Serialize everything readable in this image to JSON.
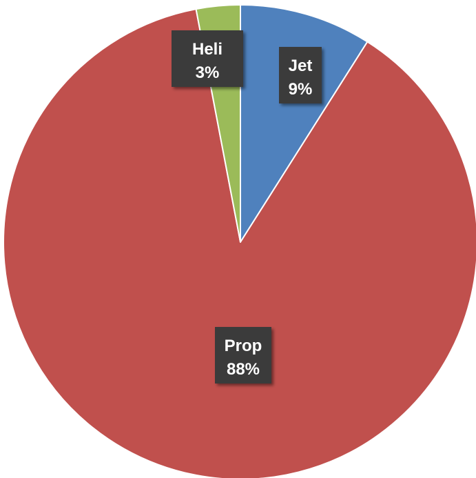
{
  "chart_data": {
    "type": "pie",
    "title": "",
    "start_angle_deg": 0,
    "direction": "clockwise",
    "legend": "none",
    "slices": [
      {
        "name": "Jet",
        "value": 9,
        "label": "9%",
        "color": "#4f81bd"
      },
      {
        "name": "Prop",
        "value": 88,
        "label": "88%",
        "color": "#c0504d"
      },
      {
        "name": "Heli",
        "value": 3,
        "label": "3%",
        "color": "#9bbb59"
      }
    ]
  }
}
